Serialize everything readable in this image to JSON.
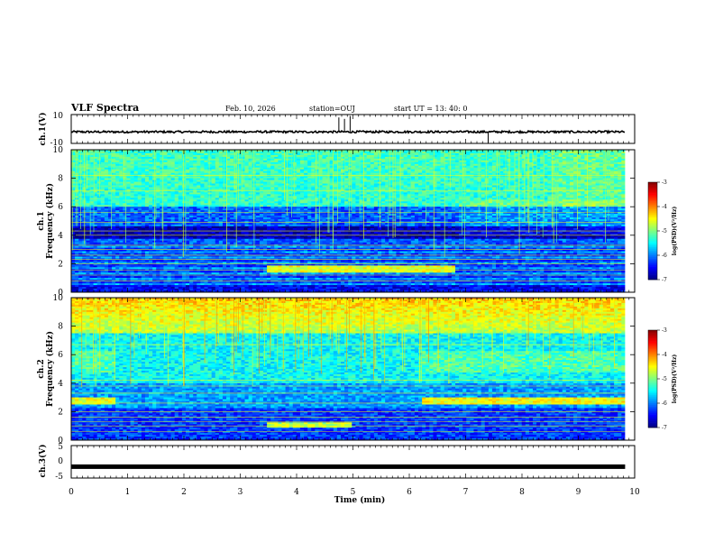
{
  "header": {
    "title": "VLF Spectra",
    "date": "Feb. 10, 2026",
    "station": "station=OUJ",
    "start": "start  UT  =   13: 40: 0"
  },
  "chart_data": {
    "type": "heatmap",
    "x": {
      "label": "Time (min)",
      "range": [
        0,
        10
      ],
      "ticks": [
        "0",
        "1",
        "2",
        "3",
        "4",
        "5",
        "6",
        "7",
        "8",
        "9",
        "10"
      ],
      "data_end": 9.83
    },
    "waveform_top": {
      "label": "ch.1(V)",
      "ylim": [
        -10,
        10
      ],
      "ticks": [
        "10",
        "-10"
      ],
      "baseline": -2,
      "spikes": [
        {
          "t": 4.75,
          "v": 8
        },
        {
          "t": 4.85,
          "v": 7
        },
        {
          "t": 4.95,
          "v": 9
        },
        {
          "t": 7.4,
          "v": -10
        }
      ]
    },
    "spectrogram_ch1": {
      "label": "ch.1\nFrequency  (kHz)",
      "ylim": [
        0,
        10
      ],
      "ticks": [
        "0",
        "2",
        "4",
        "6",
        "8",
        "10"
      ],
      "colorbar": {
        "label": "log(PSD)(V²/Hz)",
        "range": [
          -7,
          -3
        ],
        "ticks": [
          "-3",
          "-4",
          "-5",
          "-6",
          "-7"
        ]
      }
    },
    "spectrogram_ch2": {
      "label": "ch.2\nFrequency  (kHz)",
      "ylim": [
        0,
        10
      ],
      "ticks": [
        "0",
        "2",
        "4",
        "6",
        "8",
        "10"
      ],
      "colorbar": {
        "label": "log(PSD)(V²/Hz)",
        "range": [
          -7,
          -3
        ],
        "ticks": [
          "-3",
          "-4",
          "-5",
          "-6",
          "-7"
        ]
      }
    },
    "waveform_bottom": {
      "label": "ch.3(V)",
      "ylim": [
        -5,
        5
      ],
      "ticks": [
        "5",
        "0",
        "-5"
      ],
      "baseline": -1.5
    },
    "colormap": [
      "#00007f",
      "#0000ff",
      "#007fff",
      "#00ffff",
      "#7fff7f",
      "#ffff00",
      "#ff7f00",
      "#ff0000",
      "#7f0000"
    ]
  }
}
